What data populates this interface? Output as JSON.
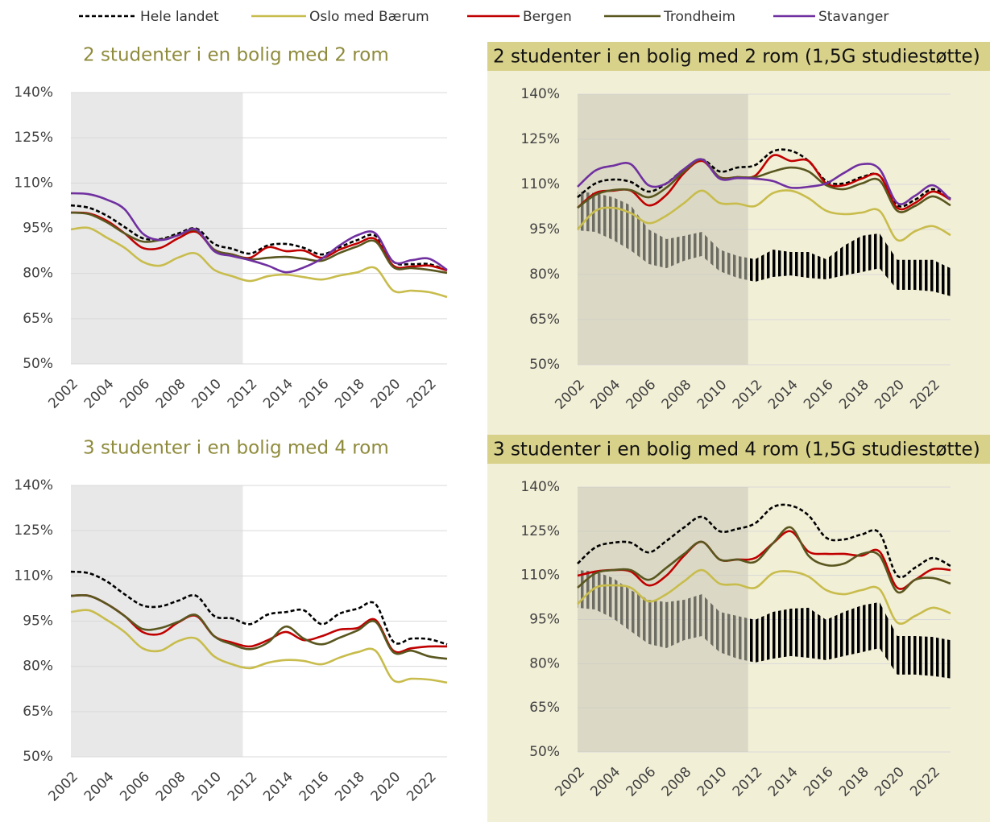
{
  "chart_data": [
    {
      "type": "line",
      "title": "2 studenter i en bolig med 2 rom",
      "x": [
        2002,
        2003,
        2004,
        2005,
        2006,
        2007,
        2008,
        2009,
        2010,
        2011,
        2012,
        2013,
        2014,
        2015,
        2016,
        2017,
        2018,
        2019,
        2020,
        2021,
        2022,
        2023
      ],
      "xlim": [
        2002,
        2023
      ],
      "xticks": [
        2002,
        2004,
        2006,
        2008,
        2010,
        2012,
        2014,
        2016,
        2018,
        2020,
        2022
      ],
      "ylim": [
        50,
        140
      ],
      "yticks": [
        {
          "value": 50,
          "label": "50%"
        },
        {
          "value": 65,
          "label": "65%"
        },
        {
          "value": 80,
          "label": "80%"
        },
        {
          "value": 95,
          "label": "95%"
        },
        {
          "value": 110,
          "label": "110%"
        },
        {
          "value": 125,
          "label": "125%"
        },
        {
          "value": 140,
          "label": "140%"
        }
      ],
      "grid": true,
      "shaded_xlim": [
        2002,
        2011.6
      ],
      "series": [
        {
          "name": "Hele landet",
          "color": "#000000",
          "dashed": true,
          "values": [
            102.6,
            101.8,
            99.2,
            95.4,
            91.7,
            91.4,
            93.3,
            94.9,
            89.8,
            88.2,
            86.6,
            89.3,
            89.8,
            88.5,
            86.3,
            88.7,
            91.1,
            92.5,
            83.9,
            83.1,
            83.1,
            81
          ]
        },
        {
          "name": "Oslo med Bærum",
          "color": "#c8bc4c",
          "values": [
            94.6,
            95.1,
            91.9,
            88.5,
            83.9,
            82.6,
            85.3,
            86.6,
            81.2,
            79.1,
            77.5,
            79.1,
            79.6,
            78.8,
            78,
            79.3,
            80.4,
            81.8,
            74.3,
            74.3,
            73.8,
            72.2
          ]
        },
        {
          "name": "Bergen",
          "color": "#c00000",
          "values": [
            100.2,
            99.9,
            97.5,
            93.3,
            88.5,
            88.5,
            91.7,
            93.8,
            87.9,
            86.3,
            85.2,
            88.7,
            87.4,
            87.6,
            85.2,
            87.9,
            90,
            91.4,
            82.6,
            82.3,
            82.6,
            81
          ]
        },
        {
          "name": "Trondheim",
          "color": "#59561f",
          "values": [
            100.2,
            99.7,
            97,
            93.3,
            90.6,
            91.1,
            92.7,
            94.3,
            87.9,
            86.3,
            84.7,
            85.2,
            85.5,
            84.9,
            84.2,
            86.8,
            89,
            90.6,
            82.1,
            81.8,
            81.2,
            80.2
          ]
        },
        {
          "name": "Stavanger",
          "color": "#7030a0",
          "values": [
            106.6,
            106.3,
            104.5,
            101.3,
            93.3,
            91.1,
            92.7,
            94.6,
            87.4,
            85.8,
            84.4,
            82.6,
            80.4,
            82,
            84.9,
            89.3,
            92.7,
            93.3,
            83.9,
            84.4,
            84.9,
            81.2
          ]
        }
      ]
    },
    {
      "type": "line",
      "title": "2 studenter i en bolig med 2 rom (1,5G studiestøtte)",
      "x": [
        2002,
        2003,
        2004,
        2005,
        2006,
        2007,
        2008,
        2009,
        2010,
        2011,
        2012,
        2013,
        2014,
        2015,
        2016,
        2017,
        2018,
        2019,
        2020,
        2021,
        2022,
        2023
      ],
      "xlim": [
        2002,
        2023
      ],
      "xticks": [
        2002,
        2004,
        2006,
        2008,
        2010,
        2012,
        2014,
        2016,
        2018,
        2020,
        2022
      ],
      "ylim": [
        50,
        140
      ],
      "yticks": [
        {
          "value": 50,
          "label": "50%"
        },
        {
          "value": 65,
          "label": "65%"
        },
        {
          "value": 80,
          "label": "80%"
        },
        {
          "value": 95,
          "label": "95%"
        },
        {
          "value": 110,
          "label": "110%"
        },
        {
          "value": 125,
          "label": "125%"
        },
        {
          "value": 140,
          "label": "140%"
        }
      ],
      "grid": true,
      "shaded_xlim": [
        2002,
        2011.6
      ],
      "band_high": [
        107.6,
        107.1,
        105.7,
        103,
        95,
        91.8,
        92.9,
        94.2,
        88.3,
        86.2,
        85.1,
        88.3,
        87.5,
        87.5,
        85.1,
        89.6,
        92.9,
        93.7,
        84.9,
        84.9,
        84.9,
        82.1
      ],
      "band_low": [
        94.7,
        94.2,
        91.5,
        88,
        83.5,
        82.1,
        84.6,
        86.2,
        81.1,
        78.9,
        77.6,
        79.2,
        79.7,
        78.9,
        78.4,
        79.7,
        80.8,
        82.1,
        74.9,
        74.9,
        74.4,
        72.8
      ],
      "series": [
        {
          "name": "Hele landet",
          "color": "#000000",
          "dashed": true,
          "values": [
            105.7,
            110.3,
            111.6,
            110.8,
            107.6,
            110.3,
            115.1,
            118.3,
            114.3,
            115.6,
            116.4,
            121,
            121.2,
            117.8,
            111.1,
            110.3,
            112.4,
            112.9,
            103,
            104.9,
            108.4,
            105.2
          ]
        },
        {
          "name": "Oslo med Bærum",
          "color": "#c8bc4c",
          "values": [
            95,
            101.2,
            102.2,
            100.4,
            97.1,
            99.6,
            103.8,
            107.9,
            103.8,
            103.6,
            102.8,
            107.1,
            107.9,
            105.4,
            101.2,
            100.1,
            100.6,
            101.2,
            91.5,
            94.4,
            96.1,
            93.1
          ]
        },
        {
          "name": "Bergen",
          "color": "#c00000",
          "values": [
            102.2,
            107.1,
            107.9,
            107.9,
            103,
            106.5,
            113.8,
            117.8,
            112.4,
            112.4,
            112.9,
            119.6,
            117.8,
            117.8,
            110.3,
            109.7,
            111.9,
            112.9,
            102.2,
            103.8,
            107.6,
            104.9
          ]
        },
        {
          "name": "Trondheim",
          "color": "#59561f",
          "values": [
            102.2,
            106.5,
            108.1,
            108.1,
            105.7,
            108.9,
            114.3,
            118.3,
            112.4,
            112.4,
            112.4,
            114.3,
            115.6,
            114.3,
            109.7,
            108.4,
            110.3,
            111.3,
            101.2,
            102.8,
            106,
            103
          ]
        },
        {
          "name": "Stavanger",
          "color": "#7030a0",
          "values": [
            109.2,
            114.6,
            116.2,
            116.7,
            109.7,
            110.3,
            115.1,
            118.3,
            111.9,
            112.1,
            111.9,
            111.1,
            108.9,
            109.2,
            110.3,
            113.8,
            116.7,
            115.1,
            103.8,
            106.2,
            109.7,
            104.9
          ]
        }
      ]
    },
    {
      "type": "line",
      "title": "3 studenter i en bolig med 4 rom",
      "x": [
        2002,
        2003,
        2004,
        2005,
        2006,
        2007,
        2008,
        2009,
        2010,
        2011,
        2012,
        2013,
        2014,
        2015,
        2016,
        2017,
        2018,
        2019,
        2020,
        2021,
        2022,
        2023
      ],
      "xlim": [
        2002,
        2023
      ],
      "xticks": [
        2002,
        2004,
        2006,
        2008,
        2010,
        2012,
        2014,
        2016,
        2018,
        2020,
        2022
      ],
      "ylim": [
        50,
        140
      ],
      "yticks": [
        {
          "value": 50,
          "label": "50%"
        },
        {
          "value": 65,
          "label": "65%"
        },
        {
          "value": 80,
          "label": "80%"
        },
        {
          "value": 95,
          "label": "95%"
        },
        {
          "value": 110,
          "label": "110%"
        },
        {
          "value": 125,
          "label": "125%"
        },
        {
          "value": 140,
          "label": "140%"
        }
      ],
      "grid": true,
      "shaded_xlim": [
        2002,
        2011.6
      ],
      "series": [
        {
          "name": "Hele landet",
          "color": "#000000",
          "dashed": true,
          "values": [
            111.4,
            110.9,
            108.2,
            103.9,
            100.2,
            99.9,
            101.8,
            103.4,
            96.7,
            95.9,
            94,
            97.2,
            98,
            98.6,
            94,
            97.5,
            99.1,
            100.7,
            88.2,
            89.2,
            89,
            87.3
          ]
        },
        {
          "name": "Oslo med Bærum",
          "color": "#c8bc4c",
          "values": [
            98,
            98.6,
            95.4,
            91.4,
            86,
            85.2,
            88.4,
            89.2,
            83.3,
            80.7,
            79.4,
            81.2,
            82.1,
            81.8,
            80.7,
            82.9,
            84.7,
            85.2,
            75.4,
            75.9,
            75.6,
            74.6
          ]
        },
        {
          "name": "Bergen",
          "color": "#c00000",
          "values": [
            103.4,
            103.4,
            100.7,
            96.7,
            91.4,
            90.8,
            94.6,
            96.7,
            90,
            87.9,
            86.6,
            88.7,
            91.4,
            88.7,
            90,
            92.2,
            92.7,
            95.4,
            85.2,
            86,
            86.6,
            86.6
          ]
        },
        {
          "name": "Trondheim",
          "color": "#59561f",
          "values": [
            103.4,
            103.4,
            100.7,
            96.7,
            92.4,
            92.7,
            94.8,
            97,
            90,
            87.3,
            85.7,
            87.9,
            93.2,
            89.2,
            87.3,
            89.5,
            91.9,
            94.8,
            84.7,
            85.2,
            83.3,
            82.5
          ]
        }
      ]
    },
    {
      "type": "line",
      "title": "3 studenter i en bolig med 4 rom (1,5G studiestøtte)",
      "x": [
        2002,
        2003,
        2004,
        2005,
        2006,
        2007,
        2008,
        2009,
        2010,
        2011,
        2012,
        2013,
        2014,
        2015,
        2016,
        2017,
        2018,
        2019,
        2020,
        2021,
        2022,
        2023
      ],
      "xlim": [
        2002,
        2023
      ],
      "xticks": [
        2002,
        2004,
        2006,
        2008,
        2010,
        2012,
        2014,
        2016,
        2018,
        2020,
        2022
      ],
      "ylim": [
        50,
        140
      ],
      "yticks": [
        {
          "value": 50,
          "label": "50%"
        },
        {
          "value": 65,
          "label": "65%"
        },
        {
          "value": 80,
          "label": "80%"
        },
        {
          "value": 95,
          "label": "95%"
        },
        {
          "value": 110,
          "label": "110%"
        },
        {
          "value": 125,
          "label": "125%"
        },
        {
          "value": 140,
          "label": "140%"
        }
      ],
      "grid": true,
      "shaded_xlim": [
        2002,
        2011.6
      ],
      "band_high": [
        111.8,
        111.3,
        109.1,
        105,
        101.7,
        100.9,
        101.7,
        103.6,
        97.6,
        96.2,
        94.9,
        97.6,
        98.7,
        99,
        94.9,
        97.6,
        99.8,
        100.9,
        89.4,
        89.4,
        89.1,
        88
      ],
      "band_low": [
        99,
        98.4,
        95.4,
        91,
        86.7,
        85.3,
        88,
        89.4,
        83.9,
        81.7,
        80.4,
        81.7,
        82.6,
        82,
        81.2,
        82.6,
        83.9,
        85.3,
        76.3,
        76.3,
        75.8,
        75
      ],
      "series": [
        {
          "name": "Hele landet",
          "color": "#000000",
          "dashed": true,
          "values": [
            114,
            119.5,
            121.1,
            121.1,
            117.8,
            121.7,
            126.3,
            129.9,
            125,
            125.8,
            127.7,
            133.2,
            133.7,
            130.4,
            122.8,
            122.2,
            123.9,
            124.4,
            109.9,
            112.6,
            115.9,
            113.2
          ]
        },
        {
          "name": "Oslo med Bærum",
          "color": "#c8bc4c",
          "values": [
            100.3,
            105.8,
            106.6,
            105.8,
            101.2,
            103.6,
            108,
            111.8,
            107.2,
            106.9,
            105.8,
            110.7,
            111.3,
            109.6,
            105,
            103.6,
            105,
            105.3,
            94,
            96.2,
            99,
            97.1
          ]
        },
        {
          "name": "Bergen",
          "color": "#c00000",
          "values": [
            109.9,
            111.3,
            111.8,
            111.3,
            106.6,
            109.9,
            116.7,
            121.4,
            115.4,
            115.4,
            115.9,
            120.9,
            125,
            118.1,
            117.3,
            117.3,
            116.7,
            118.1,
            105.8,
            108.5,
            112.1,
            111.8
          ]
        },
        {
          "name": "Trondheim",
          "color": "#59561f",
          "values": [
            105.8,
            110.7,
            111.8,
            111.8,
            108.5,
            112.6,
            117.3,
            121.4,
            115.4,
            115.4,
            114.6,
            120.9,
            126.3,
            116.7,
            113.5,
            114,
            117.3,
            116.7,
            104.4,
            108.5,
            109.1,
            107.2
          ]
        }
      ]
    }
  ]
}
